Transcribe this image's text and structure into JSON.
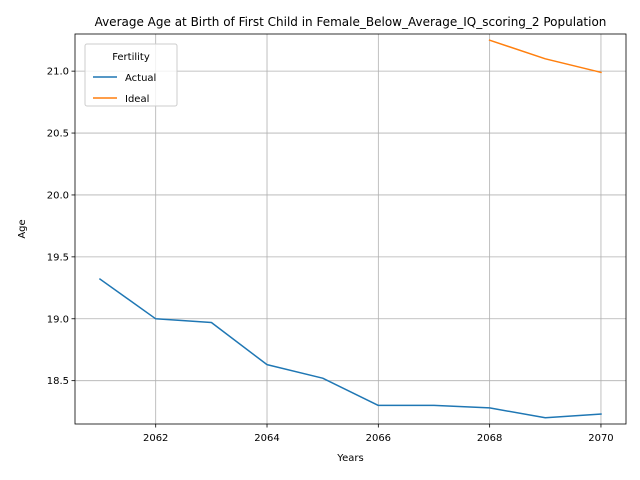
{
  "chart_data": {
    "type": "line",
    "title": "Average Age at Birth of First Child in Female_Below_Average_IQ_scoring_2 Population",
    "xlabel": "Years",
    "ylabel": "Age",
    "xlim": [
      2060.55,
      2070.45
    ],
    "ylim": [
      18.15,
      21.3
    ],
    "xticks": [
      2062,
      2064,
      2066,
      2068,
      2070
    ],
    "yticks": [
      18.5,
      19.0,
      19.5,
      20.0,
      20.5,
      21.0
    ],
    "grid": true,
    "legend": {
      "title": "Fertility",
      "placement": "upper left"
    },
    "series": [
      {
        "name": "Actual",
        "color": "#1f77b4",
        "x": [
          2061,
          2062,
          2063,
          2064,
          2065,
          2066,
          2067,
          2068,
          2069,
          2070
        ],
        "y": [
          19.32,
          19.0,
          18.97,
          18.63,
          18.52,
          18.3,
          18.3,
          18.28,
          18.2,
          18.23
        ]
      },
      {
        "name": "Ideal",
        "color": "#ff7f0e",
        "x": [
          2068,
          2069,
          2070
        ],
        "y": [
          21.25,
          21.1,
          20.99
        ]
      }
    ]
  }
}
